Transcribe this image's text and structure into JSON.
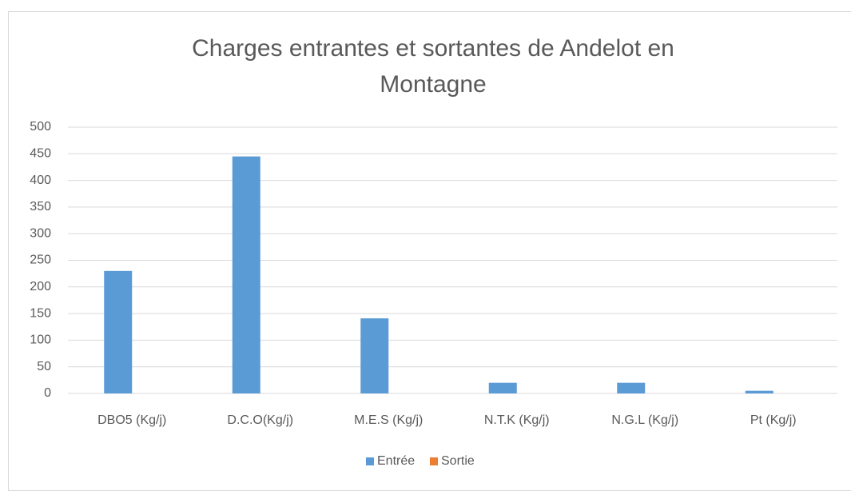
{
  "chart_data": {
    "type": "bar",
    "title": "Charges entrantes et sortantes de Andelot en Montagne",
    "categories": [
      "DBO5 (Kg/j)",
      "D.C.O(Kg/j)",
      "M.E.S (Kg/j)",
      "N.T.K (Kg/j)",
      "N.G.L (Kg/j)",
      "Pt (Kg/j)"
    ],
    "series": [
      {
        "name": "Entrée",
        "color": "#5b9bd5",
        "values": [
          230,
          445,
          141,
          20,
          20,
          5
        ]
      },
      {
        "name": "Sortie",
        "color": "#ed7d31",
        "values": [
          0,
          0,
          0,
          0,
          0,
          0
        ]
      }
    ],
    "ylim": [
      0,
      500
    ],
    "yticks": [
      0,
      50,
      100,
      150,
      200,
      250,
      300,
      350,
      400,
      450,
      500
    ],
    "grid": true,
    "legend": "bottom"
  }
}
